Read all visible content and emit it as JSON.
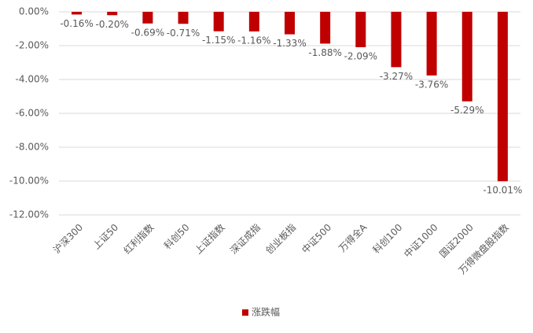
{
  "chart_data": {
    "type": "bar",
    "categories": [
      "沪深300",
      "上证50",
      "红利指数",
      "科创50",
      "上证指数",
      "深证成指",
      "创业板指",
      "中证500",
      "万得全A",
      "科创100",
      "中证1000",
      "国证2000",
      "万得微盘股指数"
    ],
    "series": [
      {
        "name": "涨跌幅",
        "color": "#c00000",
        "values": [
          -0.16,
          -0.2,
          -0.69,
          -0.71,
          -1.15,
          -1.16,
          -1.33,
          -1.88,
          -2.09,
          -3.27,
          -3.76,
          -5.29,
          -10.01
        ],
        "value_labels": [
          "-0.16%",
          "-0.20%",
          "-0.69%",
          "-0.71%",
          "-1.15%",
          "-1.16%",
          "-1.33%",
          "-1.88%",
          "-2.09%",
          "-3.27%",
          "-3.76%",
          "-5.29%",
          "-10.01%"
        ]
      }
    ],
    "ylim": [
      -12,
      0
    ],
    "yticks": [
      {
        "value": 0,
        "label": "0.00%"
      },
      {
        "value": -2,
        "label": "-2.00%"
      },
      {
        "value": -4,
        "label": "-4.00%"
      },
      {
        "value": -6,
        "label": "-6.00%"
      },
      {
        "value": -8,
        "label": "-8.00%"
      },
      {
        "value": -10,
        "label": "-10.00%"
      },
      {
        "value": -12,
        "label": "-12.00%"
      }
    ],
    "grid": true,
    "legend": "bottom"
  }
}
